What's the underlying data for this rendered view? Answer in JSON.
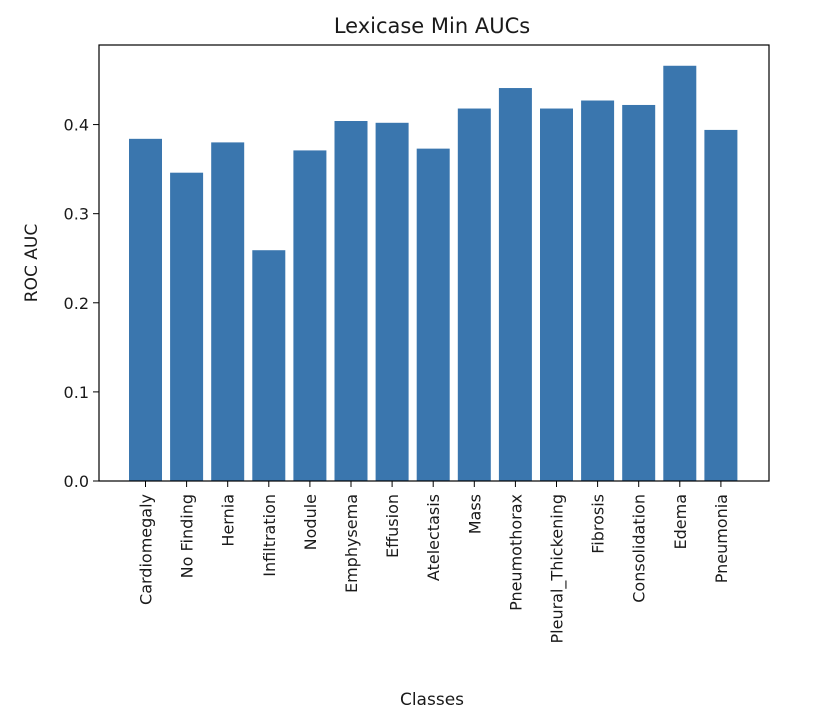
{
  "chart_data": {
    "type": "bar",
    "title": "Lexicase Min AUCs",
    "xlabel": "Classes",
    "ylabel": "ROC AUC",
    "categories": [
      "Cardiomegaly",
      "No Finding",
      "Hernia",
      "Infiltration",
      "Nodule",
      "Emphysema",
      "Effusion",
      "Atelectasis",
      "Mass",
      "Pneumothorax",
      "Pleural_Thickening",
      "Fibrosis",
      "Consolidation",
      "Edema",
      "Pneumonia"
    ],
    "values": [
      0.384,
      0.346,
      0.38,
      0.259,
      0.371,
      0.404,
      0.402,
      0.373,
      0.418,
      0.441,
      0.418,
      0.427,
      0.422,
      0.466,
      0.394
    ],
    "yticks": [
      "0.0",
      "0.1",
      "0.2",
      "0.3",
      "0.4"
    ],
    "ylim": [
      0,
      0.4893
    ],
    "grid": false,
    "bar_color": "#3a76ae"
  }
}
